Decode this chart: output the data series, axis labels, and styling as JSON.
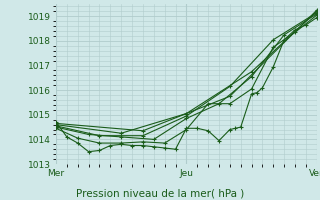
{
  "bg_color": "#d0e8e8",
  "grid_color": "#b0cccc",
  "line_color": "#1a5c1a",
  "ylim": [
    1013.0,
    1019.5
  ],
  "xlim": [
    0,
    48
  ],
  "yticks": [
    1013,
    1014,
    1015,
    1016,
    1017,
    1018,
    1019
  ],
  "xtick_positions": [
    0,
    24,
    48
  ],
  "xtick_labels": [
    "Mer",
    "Jeu",
    "Ven"
  ],
  "xlabel": "Pression niveau de la mer( hPa )",
  "vlines": [
    0,
    24,
    48
  ],
  "series": [
    [
      0,
      1014.7,
      2,
      1014.1,
      4,
      1013.85,
      6,
      1013.5,
      8,
      1013.55,
      10,
      1013.75,
      12,
      1013.8,
      14,
      1013.75,
      16,
      1013.75,
      18,
      1013.7,
      20,
      1013.65,
      22,
      1013.6,
      24,
      1014.45,
      26,
      1014.45,
      28,
      1014.35,
      30,
      1013.95,
      32,
      1014.4,
      33,
      1014.45,
      34,
      1014.5,
      36,
      1015.85,
      37,
      1015.9,
      38,
      1016.1,
      40,
      1016.95,
      42,
      1018.05,
      44,
      1018.45,
      46,
      1018.65,
      48,
      1018.95
    ],
    [
      0,
      1014.45,
      4,
      1014.05,
      8,
      1013.85,
      12,
      1013.85,
      16,
      1013.9,
      20,
      1013.85,
      24,
      1014.4,
      28,
      1015.45,
      32,
      1015.45,
      36,
      1016.05,
      40,
      1017.75,
      44,
      1018.35,
      48,
      1019.05
    ],
    [
      0,
      1014.5,
      6,
      1014.2,
      12,
      1014.1,
      18,
      1014.0,
      24,
      1014.85,
      30,
      1015.45,
      36,
      1016.55,
      42,
      1018.25,
      48,
      1019.1
    ],
    [
      0,
      1014.55,
      8,
      1014.15,
      16,
      1014.15,
      24,
      1014.95,
      32,
      1016.15,
      40,
      1018.05,
      48,
      1019.15
    ],
    [
      0,
      1014.6,
      12,
      1014.25,
      24,
      1015.05,
      36,
      1016.75,
      48,
      1019.2
    ],
    [
      0,
      1014.65,
      16,
      1014.35,
      32,
      1015.75,
      48,
      1019.25
    ]
  ]
}
